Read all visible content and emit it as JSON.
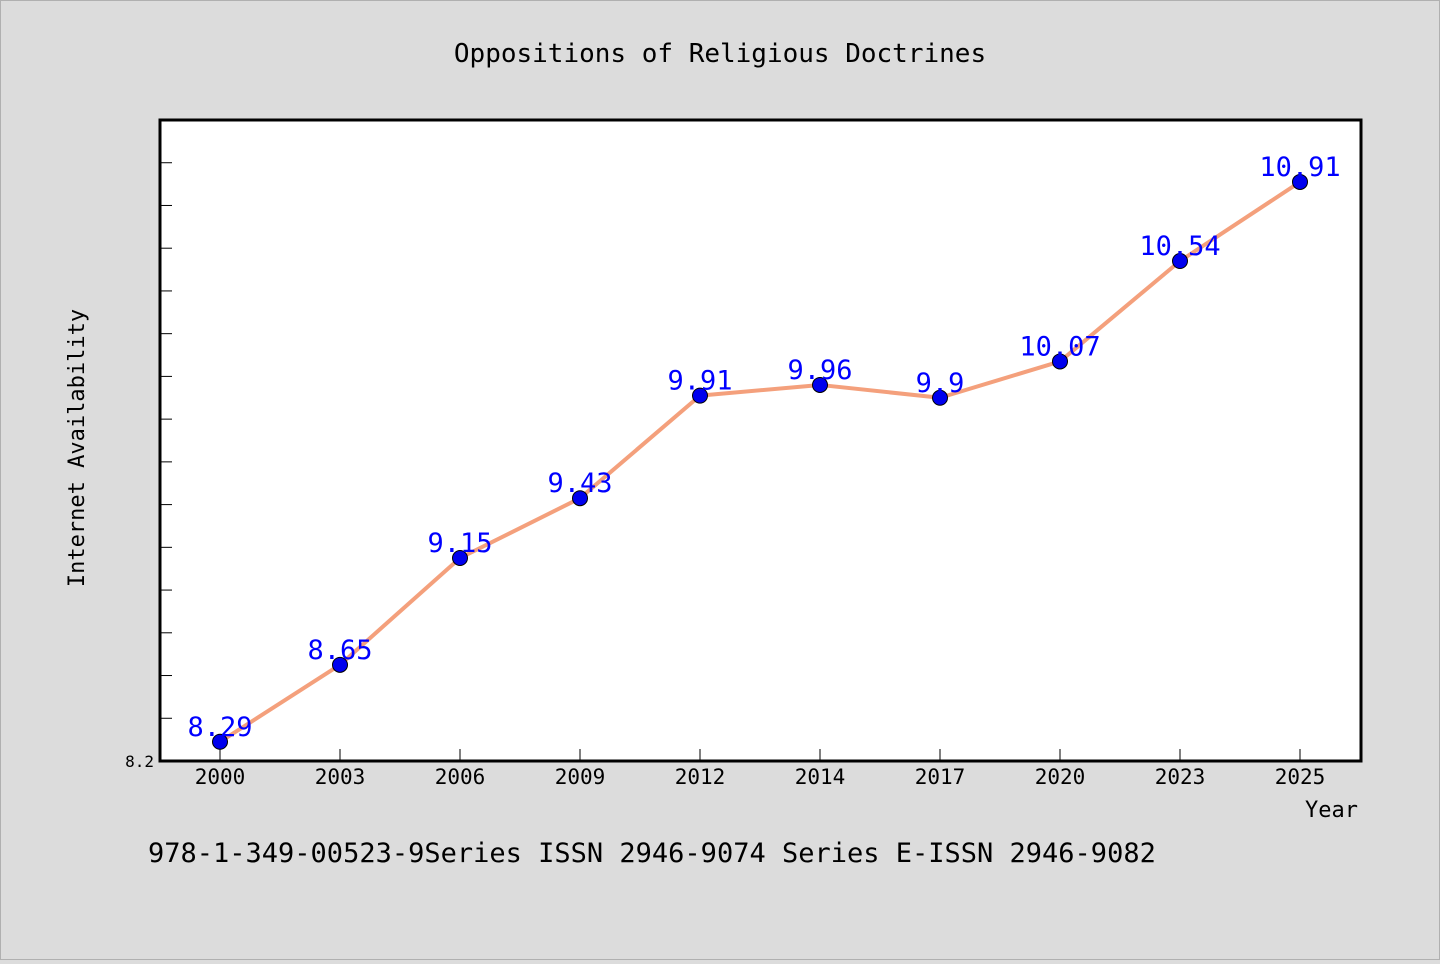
{
  "chart_data": {
    "type": "line",
    "title": "Oppositions of Religious Doctrines",
    "xlabel": "Year",
    "ylabel": "Internet Availability",
    "categories": [
      "2000",
      "2003",
      "2006",
      "2009",
      "2012",
      "2014",
      "2017",
      "2020",
      "2023",
      "2025"
    ],
    "series": [
      {
        "values": [
          8.29,
          8.65,
          9.15,
          9.43,
          9.91,
          9.96,
          9.9,
          10.07,
          10.54,
          10.91
        ],
        "labels": [
          "8.29",
          "8.65",
          "9.15",
          "9.43",
          "9.91",
          "9.96",
          "9.9",
          "10.07",
          "10.54",
          "10.91"
        ]
      }
    ],
    "ylim": [
      8.2,
      11.2
    ],
    "y_tick_labels": [
      "8.2"
    ],
    "grid": false,
    "line_color": "#f4a07c",
    "marker_color": "#0000ee",
    "label_color": "#0000ff",
    "background_color": "#dcdcdc",
    "plot_background_color": "#ffffff"
  },
  "footer": {
    "text": "978-1-349-00523-9Series ISSN 2946-9074 Series E-ISSN 2946-9082"
  }
}
